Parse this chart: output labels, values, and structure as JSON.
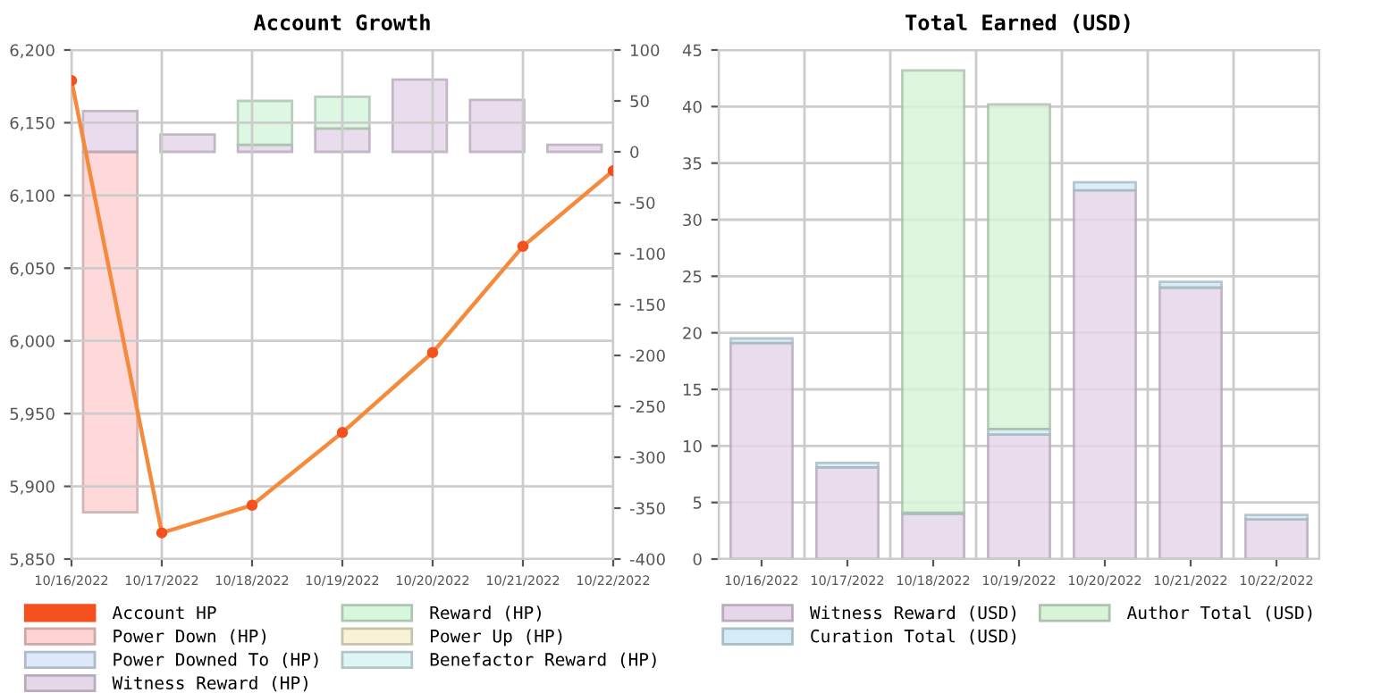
{
  "chart_data": [
    {
      "type": "bar",
      "title": "Account Growth",
      "stacked": true,
      "grid": true,
      "legend": "bottom",
      "marker": "circle",
      "categories": [
        "10/16/2022",
        "10/17/2022",
        "10/18/2022",
        "10/19/2022",
        "10/20/2022",
        "10/21/2022",
        "10/22/2022"
      ],
      "ylim": [
        5850,
        6200
      ],
      "yticks": [
        {
          "value": 5850,
          "label": "5,850"
        },
        {
          "value": 5900,
          "label": "5,900"
        },
        {
          "value": 5950,
          "label": "5,950"
        },
        {
          "value": 6000,
          "label": "6,000"
        },
        {
          "value": 6050,
          "label": "6,050"
        },
        {
          "value": 6100,
          "label": "6,100"
        },
        {
          "value": 6150,
          "label": "6,150"
        },
        {
          "value": 6200,
          "label": "6,200"
        }
      ],
      "y2lim": [
        -400,
        100
      ],
      "y2ticks": [
        -400,
        -350,
        -300,
        -250,
        -200,
        -150,
        -100,
        -50,
        0,
        50,
        100
      ],
      "series": [
        {
          "name": "Account HP",
          "type": "line",
          "color": "#f4511e",
          "values": [
            6179,
            5868,
            5887,
            5937,
            5992,
            6065,
            6117
          ]
        },
        {
          "name": "Power Down (HP)",
          "axis": "y2",
          "color": "#ffd3d3",
          "values": [
            -354,
            null,
            null,
            null,
            null,
            null,
            null
          ]
        },
        {
          "name": "Power Downed To (HP)",
          "axis": "y2",
          "color": "#dde8fa",
          "values": [
            null,
            null,
            null,
            null,
            null,
            null,
            null
          ]
        },
        {
          "name": "Witness Reward (HP)",
          "axis": "y2",
          "color": "#e6d6ea",
          "values": [
            40,
            17,
            7,
            23,
            71,
            51,
            7
          ]
        },
        {
          "name": "Reward (HP)",
          "axis": "y2",
          "color": "#d7f7dd",
          "values": [
            null,
            null,
            43,
            31,
            null,
            null,
            null
          ]
        },
        {
          "name": "Power Up (HP)",
          "axis": "y2",
          "color": "#f8f2d6",
          "values": [
            null,
            null,
            null,
            null,
            null,
            null,
            null
          ]
        },
        {
          "name": "Benefactor Reward (HP)",
          "axis": "y2",
          "color": "#ddf6f5",
          "values": [
            null,
            null,
            null,
            null,
            null,
            null,
            null
          ]
        }
      ]
    },
    {
      "type": "bar",
      "title": "Total Earned (USD)",
      "stacked": true,
      "grid": true,
      "legend": "bottom",
      "categories": [
        "10/16/2022",
        "10/17/2022",
        "10/18/2022",
        "10/19/2022",
        "10/20/2022",
        "10/21/2022",
        "10/22/2022"
      ],
      "ylim": [
        0,
        45
      ],
      "yticks": [
        0,
        5,
        10,
        15,
        20,
        25,
        30,
        35,
        40,
        45
      ],
      "series": [
        {
          "name": "Witness Reward (USD)",
          "color": "#e6d6ea",
          "values": [
            19.1,
            8.1,
            4.0,
            11.0,
            32.6,
            24.0,
            3.5
          ]
        },
        {
          "name": "Curation Total (USD)",
          "color": "#d3ecf7",
          "values": [
            0.4,
            0.4,
            0.1,
            0.5,
            0.7,
            0.5,
            0.4
          ]
        },
        {
          "name": "Author Total (USD)",
          "color": "#d8f3d8",
          "values": [
            null,
            null,
            39.1,
            28.7,
            null,
            null,
            null
          ]
        }
      ]
    }
  ]
}
